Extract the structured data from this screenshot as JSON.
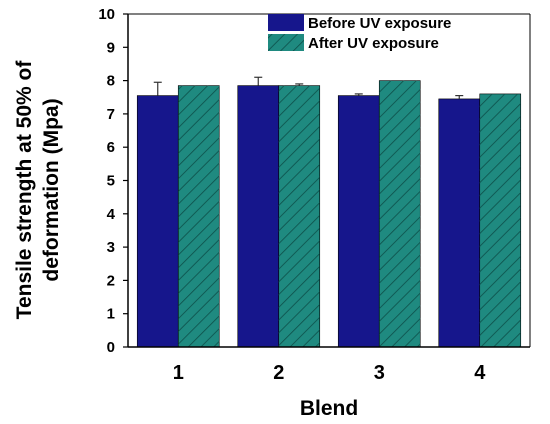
{
  "chart_data": {
    "type": "bar",
    "xlabel": "Blend",
    "ylabel": "Tensile strength at 50% of deformation (Mpa)",
    "ylabel_lines": [
      "Tensile strength at 50% of",
      "deformation (Mpa)"
    ],
    "ylim": [
      0,
      10
    ],
    "yticks": [
      0,
      1,
      2,
      3,
      4,
      5,
      6,
      7,
      8,
      9,
      10
    ],
    "categories": [
      "1",
      "2",
      "3",
      "4"
    ],
    "series": [
      {
        "name": "Before UV exposure",
        "color": "#16168c",
        "hatched": false,
        "values": [
          7.55,
          7.85,
          7.55,
          7.45
        ],
        "errors": [
          0.4,
          0.25,
          0.05,
          0.1
        ]
      },
      {
        "name": "After UV exposure",
        "color": "#1f8a80",
        "hatched": true,
        "values": [
          7.85,
          7.85,
          8.0,
          7.6
        ],
        "errors": [
          0.0,
          0.05,
          0.0,
          0.0
        ]
      }
    ],
    "legend_position": "top-right",
    "grid": false
  }
}
